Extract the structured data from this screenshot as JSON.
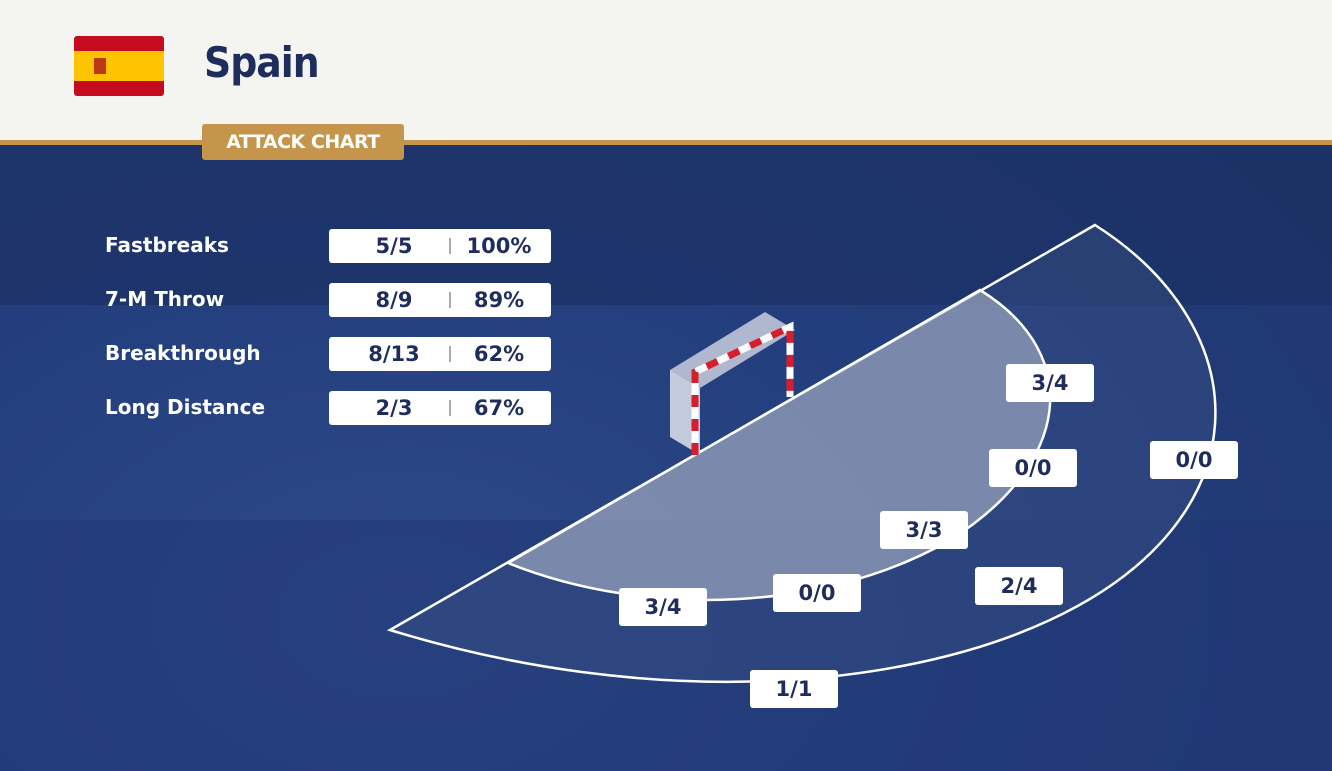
{
  "header": {
    "team": "Spain",
    "badge": "ATTACK CHART"
  },
  "stats": [
    {
      "label": "Fastbreaks",
      "ratio": "5/5",
      "percent": "100%"
    },
    {
      "label": "7-M Throw",
      "ratio": "8/9",
      "percent": "89%"
    },
    {
      "label": "Breakthrough",
      "ratio": "8/13",
      "percent": "62%"
    },
    {
      "label": "Long Distance",
      "ratio": "2/3",
      "percent": "67%"
    }
  ],
  "zones": [
    {
      "label": "3/4"
    },
    {
      "label": "0/0"
    },
    {
      "label": "0/0"
    },
    {
      "label": "3/3"
    },
    {
      "label": "2/4"
    },
    {
      "label": "0/0"
    },
    {
      "label": "3/4"
    },
    {
      "label": "1/1"
    }
  ]
}
